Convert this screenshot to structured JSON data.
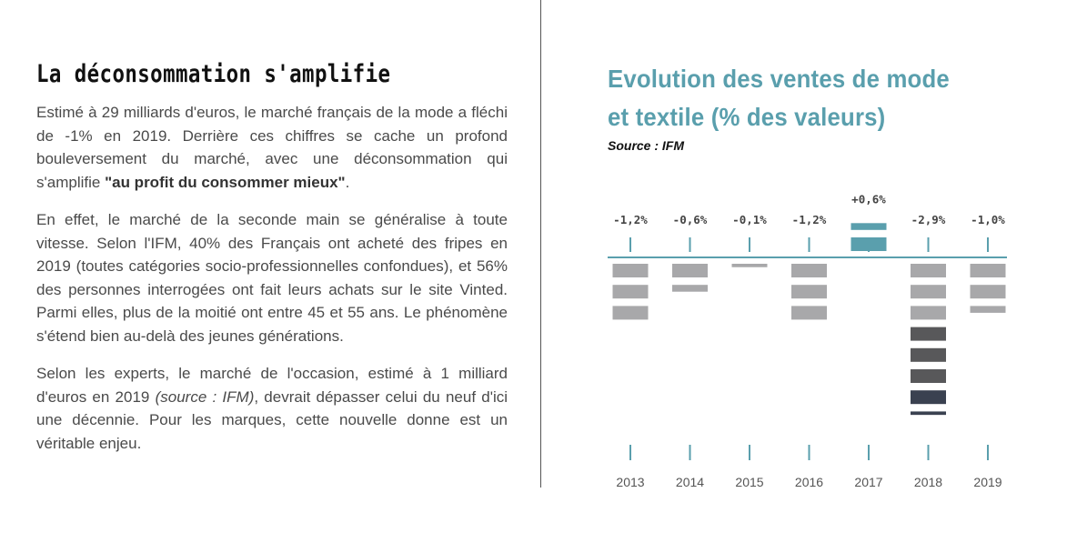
{
  "left": {
    "title": "La déconsommation s'amplifie",
    "p1_a": "Estimé à 29 milliards d'euros, le marché français de la mode a fléchi de -1% en 2019. Derrière ces chiffres se cache un profond bouleversement du marché, avec une déconsom­mation qui s'amplifie ",
    "p1_bold": "\"au profit du consommer mieux\"",
    "p1_end": ".",
    "p2": "En effet, le marché de la seconde main se généralise à toute vitesse. Selon l'IFM, 40% des Français ont acheté des fripes en 2019 (toutes catégories socio-professionnelles confon­dues), et 56% des personnes interrogées ont fait leurs achats sur le site Vinted. Parmi elles, plus de la moitié ont entre 45 et 55 ans. Le phénomène s'étend bien au-delà des jeunes générations.",
    "p3_a": "Selon les experts, le marché de l'occasion, estimé à 1 milliard d'euros en 2019 ",
    "p3_italic": "(source : IFM)",
    "p3_b": ", devrait dépasser celui du neuf d'ici une décennie. Pour les marques, cette nouvelle donne est un véritable enjeu."
  },
  "right": {
    "title_line1": "Evolution des ventes de mode",
    "title_line2": "et textile (% des valeurs)",
    "source": "Source : IFM"
  },
  "colors": {
    "positive": "#5a9fad",
    "light_gray": "#a8a8aa",
    "dark_gray": "#58585a",
    "navy": "#3a4150",
    "axis": "#5a9fad"
  },
  "chart_data": {
    "type": "bar",
    "categories": [
      "2013",
      "2014",
      "2015",
      "2016",
      "2017",
      "2018",
      "2019"
    ],
    "values": [
      -1.2,
      -0.6,
      -0.1,
      -1.2,
      0.6,
      -2.9,
      -1.0
    ],
    "value_labels": [
      "-1,2%",
      "-0,6%",
      "-0,1%",
      "-1,2%",
      "+0,6%",
      "-2,9%",
      "-1,0%"
    ],
    "ylim": [
      -3.0,
      0.6
    ],
    "grid": false
  }
}
